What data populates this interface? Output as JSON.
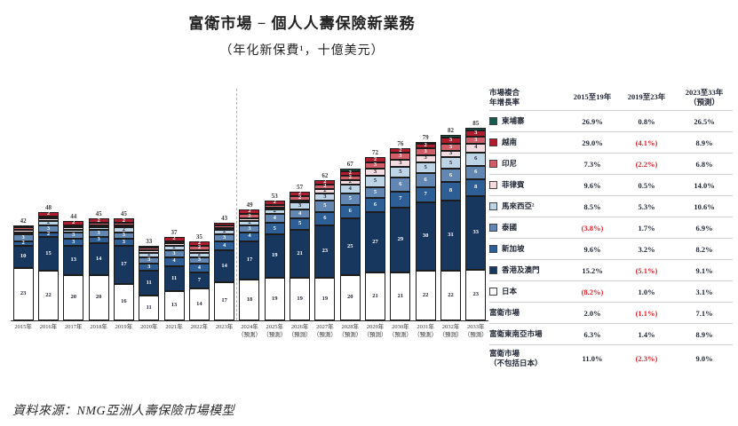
{
  "title": "富衛市場 − 個人人壽保險新業務",
  "subtitle": "（年化新保費¹，十億美元）",
  "source": "資料來源：NMG亞洲人壽保險市場模型",
  "colors": {
    "japan": "#ffffff",
    "hongkong_macau": "#17375e",
    "singapore": "#2d5e96",
    "thailand": "#6287b2",
    "malaysia": "#bdd3e6",
    "philippines": "#f3dbdf",
    "indonesia": "#d05d68",
    "vietnam": "#ae1c2e",
    "cambodia": "#185a4f",
    "negative_text": "#e01f26"
  },
  "chart_data": {
    "type": "bar",
    "stacked": true,
    "title": "富衛市場 − 個人人壽保險新業務",
    "subtitle": "（年化新保費¹，十億美元）",
    "ylabel": "年化新保費（十億美元）",
    "grid": false,
    "legend_position": "table-right",
    "categories": [
      "2015年",
      "2016年",
      "2017年",
      "2018年",
      "2019年",
      "2020年",
      "2021年",
      "2022年",
      "2023年",
      "2024年\n（預測）",
      "2025年\n（預測）",
      "2026年\n（預測）",
      "2027年\n（預測）",
      "2028年\n（預測）",
      "2029年\n（預測）",
      "2030年\n（預測）",
      "2031年\n（預測）",
      "2032年\n（預測）",
      "2033年\n（預測）"
    ],
    "forecast_from_index": 9,
    "totals": [
      42,
      48,
      44,
      45,
      45,
      33,
      37,
      35,
      43,
      49,
      53,
      57,
      62,
      67,
      72,
      76,
      79,
      82,
      85
    ],
    "series": [
      {
        "name": "日本",
        "color": "#ffffff",
        "text": "#1f2433",
        "values": [
          23,
          22,
          20,
          20,
          16,
          11,
          13,
          14,
          17,
          18,
          19,
          19,
          19,
          20,
          21,
          21,
          22,
          22,
          23
        ]
      },
      {
        "name": "香港及澳門",
        "color": "#17375e",
        "text": "#ffffff",
        "values": [
          10,
          15,
          13,
          14,
          17,
          11,
          11,
          7,
          14,
          17,
          19,
          21,
          23,
          25,
          27,
          29,
          30,
          31,
          33
        ]
      },
      {
        "name": "新加坡",
        "color": "#2d5e96",
        "text": "#ffffff",
        "values": [
          2,
          2,
          3,
          3,
          3,
          3,
          4,
          4,
          4,
          4,
          5,
          5,
          6,
          6,
          6,
          7,
          7,
          8,
          8
        ]
      },
      {
        "name": "泰國",
        "color": "#6287b2",
        "text": "#ffffff",
        "values": [
          3,
          3,
          3,
          3,
          3,
          3,
          3,
          3,
          3,
          3,
          4,
          4,
          5,
          5,
          5,
          6,
          6,
          6,
          6
        ]
      },
      {
        "name": "馬來西亞",
        "color": "#bdd3e6",
        "text": "#1f2433",
        "values": [
          1,
          2,
          1,
          1,
          2,
          2,
          2,
          2,
          2,
          2,
          2,
          3,
          3,
          4,
          5,
          5,
          5,
          5,
          6
        ]
      },
      {
        "name": "菲律賓",
        "color": "#f3dbdf",
        "text": "#1f2433",
        "values": [
          1,
          1,
          1,
          1,
          1,
          1,
          1,
          1,
          1,
          1,
          1,
          1,
          2,
          2,
          3,
          3,
          3,
          3,
          4
        ]
      },
      {
        "name": "印尼",
        "color": "#d05d68",
        "text": "#ffffff",
        "values": [
          1,
          1,
          1,
          1,
          1,
          1,
          1,
          2,
          1,
          2,
          1,
          2,
          2,
          2,
          3,
          3,
          3,
          3,
          3
        ]
      },
      {
        "name": "越南",
        "color": "#ae1c2e",
        "text": "#ffffff",
        "values": [
          1,
          2,
          2,
          2,
          2,
          1,
          2,
          2,
          1,
          2,
          2,
          2,
          2,
          2,
          2,
          2,
          2,
          3,
          3
        ]
      },
      {
        "name": "柬埔寨",
        "color": "#185a4f",
        "text": "#ffffff",
        "values": [
          0,
          0,
          0,
          0,
          0,
          0,
          0,
          0,
          0,
          0,
          0,
          0,
          0,
          1,
          0,
          0,
          1,
          1,
          1
        ]
      }
    ]
  },
  "table": {
    "header": [
      "市場複合\n年增長率",
      "2015至19年",
      "2019至23年",
      "2023至33年\n（預測）"
    ],
    "rows": [
      {
        "label": "柬埔寨",
        "color": "#185a4f",
        "values": [
          "26.9%",
          "0.8%",
          "26.5%"
        ]
      },
      {
        "label": "越南",
        "color": "#ae1c2e",
        "values": [
          "29.0%",
          "(4.1%)",
          "8.9%"
        ]
      },
      {
        "label": "印尼",
        "color": "#d05d68",
        "values": [
          "7.3%",
          "(2.2%)",
          "6.8%"
        ]
      },
      {
        "label": "菲律賓",
        "color": "#f3dbdf",
        "values": [
          "9.6%",
          "0.5%",
          "14.0%"
        ]
      },
      {
        "label": "馬來西亞²",
        "color": "#bdd3e6",
        "values": [
          "8.5%",
          "5.3%",
          "10.6%"
        ]
      },
      {
        "label": "泰國",
        "color": "#6287b2",
        "values": [
          "(3.8%)",
          "1.7%",
          "6.9%"
        ]
      },
      {
        "label": "新加坡",
        "color": "#2d5e96",
        "values": [
          "9.6%",
          "3.2%",
          "8.2%"
        ]
      },
      {
        "label": "香港及澳門",
        "color": "#17375e",
        "values": [
          "15.2%",
          "(5.1%)",
          "9.1%"
        ]
      },
      {
        "label": "日本",
        "color": "#ffffff",
        "values": [
          "(8.2%)",
          "1.0%",
          "3.1%"
        ]
      }
    ],
    "summary_rows": [
      {
        "label": "富衛市場",
        "values": [
          "2.0%",
          "(1.1%)",
          "7.1%"
        ]
      },
      {
        "label": "富衛東南亞市場",
        "values": [
          "6.3%",
          "1.4%",
          "8.9%"
        ]
      },
      {
        "label": "富衛市場\n（不包括日本）",
        "values": [
          "11.0%",
          "(2.3%)",
          "9.0%"
        ]
      }
    ]
  }
}
